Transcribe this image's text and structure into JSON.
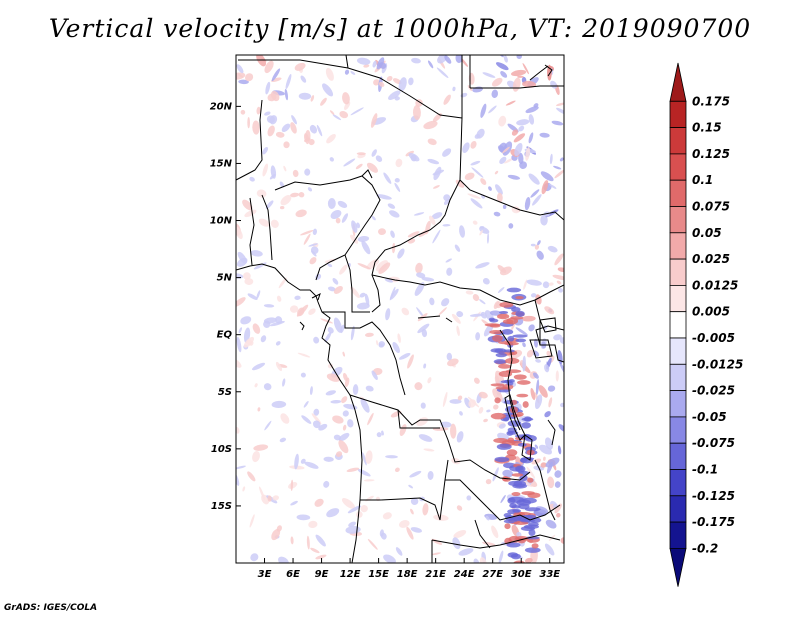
{
  "title": "Vertical velocity [m/s] at 1000hPa, VT: 2019090700",
  "credit": "GrADS: IGES/COLA",
  "map": {
    "lon_range": [
      0,
      34.5
    ],
    "lat_range": [
      -20,
      24.5
    ],
    "lat_ticks": [
      "20N",
      "15N",
      "10N",
      "5N",
      "EQ",
      "5S",
      "10S",
      "15S"
    ],
    "lon_ticks": [
      "3E",
      "6E",
      "9E",
      "12E",
      "15E",
      "18E",
      "21E",
      "24E",
      "27E",
      "30E",
      "33E"
    ]
  },
  "colorbar": {
    "labels": [
      "0.175",
      "0.15",
      "0.125",
      "0.1",
      "0.075",
      "0.05",
      "0.025",
      "0.0125",
      "0.005",
      "-0.005",
      "-0.0125",
      "-0.025",
      "-0.05",
      "-0.075",
      "-0.1",
      "-0.125",
      "-0.175",
      "-0.2"
    ],
    "colors": [
      "#9e1a1a",
      "#b82424",
      "#cc3a3a",
      "#d95050",
      "#e06a6a",
      "#e88a8a",
      "#f2aaaa",
      "#f8cccc",
      "#fce6e6",
      "#ffffff",
      "#e6e6fc",
      "#ccccf7",
      "#aaaaef",
      "#8888e5",
      "#6666d8",
      "#4444c8",
      "#2a2ab0",
      "#141490",
      "#0a0a78"
    ]
  }
}
